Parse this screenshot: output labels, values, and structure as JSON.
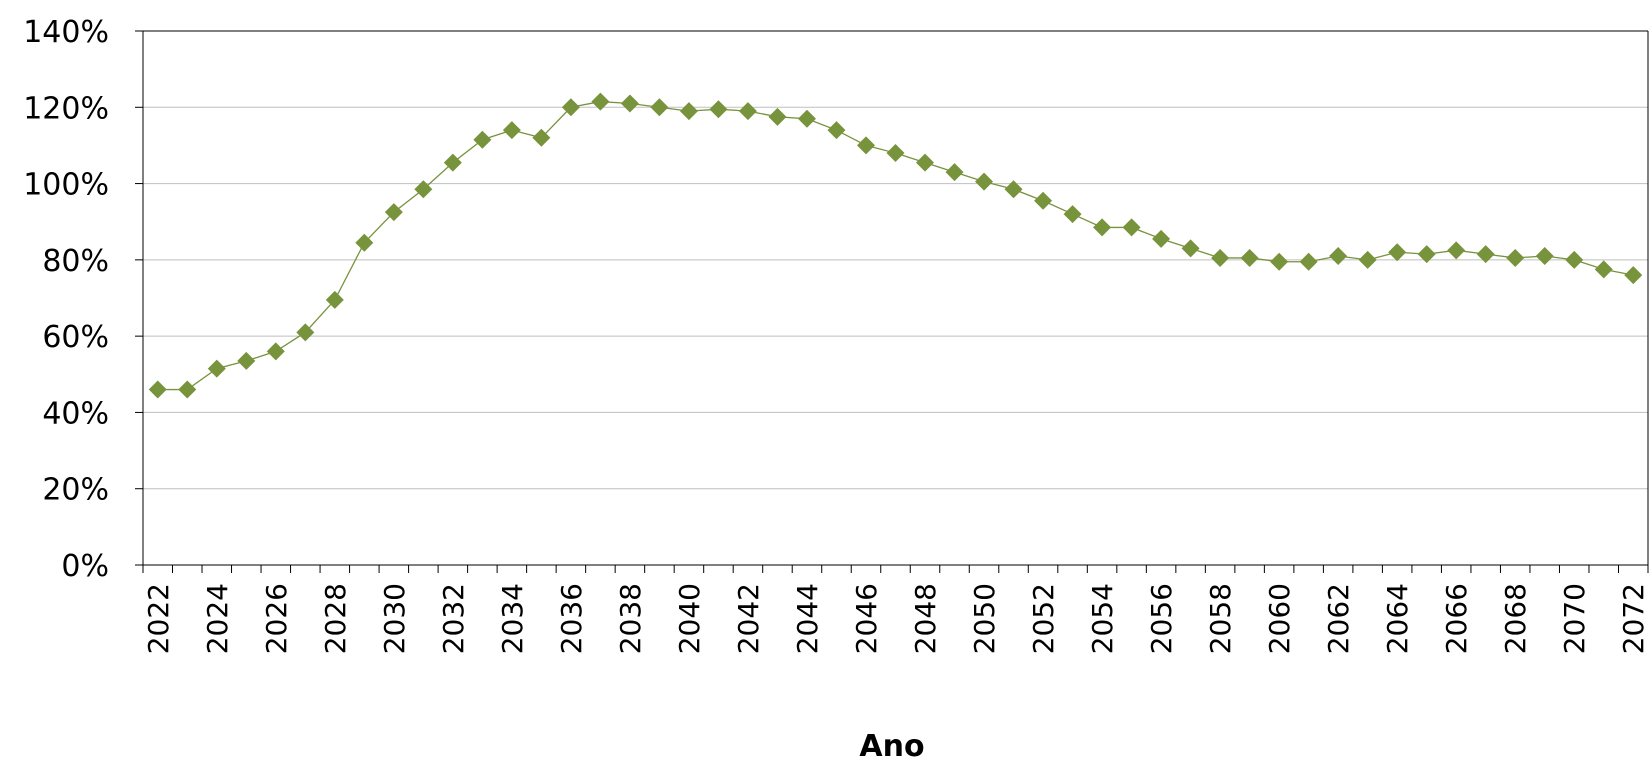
{
  "chart_data": {
    "type": "line",
    "title": "",
    "xlabel": "Ano",
    "ylabel": "",
    "ylim": [
      0,
      140
    ],
    "y_ticks": [
      0,
      20,
      40,
      60,
      80,
      100,
      120,
      140
    ],
    "y_tick_suffix": "%",
    "grid": "horizontal",
    "legend": "none",
    "x_tick_labels": [
      "2022",
      "2024",
      "2026",
      "2028",
      "2030",
      "2032",
      "2034",
      "2036",
      "2038",
      "2040",
      "2042",
      "2044",
      "2046",
      "2048",
      "2050",
      "2052",
      "2054",
      "2056",
      "2058",
      "2060",
      "2062",
      "2064",
      "2066",
      "2068",
      "2070",
      "2072"
    ],
    "x": [
      2022,
      2023,
      2024,
      2025,
      2026,
      2027,
      2028,
      2029,
      2030,
      2031,
      2032,
      2033,
      2034,
      2035,
      2036,
      2037,
      2038,
      2039,
      2040,
      2041,
      2042,
      2043,
      2044,
      2045,
      2046,
      2047,
      2048,
      2049,
      2050,
      2051,
      2052,
      2053,
      2054,
      2055,
      2056,
      2057,
      2058,
      2059,
      2060,
      2061,
      2062,
      2063,
      2064,
      2065,
      2066,
      2067,
      2068,
      2069,
      2070,
      2071,
      2072
    ],
    "series": [
      {
        "color": "#77933c",
        "marker": "diamond",
        "values": [
          46,
          46,
          51.5,
          53.5,
          56,
          61,
          69.5,
          84.5,
          92.5,
          98.5,
          105.5,
          111.5,
          114,
          112,
          120,
          121.5,
          121,
          120,
          119,
          119.5,
          119,
          117.5,
          117,
          114,
          110,
          108,
          105.5,
          103,
          100.5,
          98.5,
          95.5,
          92,
          88.5,
          88.5,
          85.5,
          83,
          80.5,
          80.5,
          79.5,
          79.5,
          81,
          80,
          82,
          81.5,
          82.5,
          81.5,
          80.5,
          81,
          80,
          77.5,
          76
        ]
      }
    ]
  }
}
